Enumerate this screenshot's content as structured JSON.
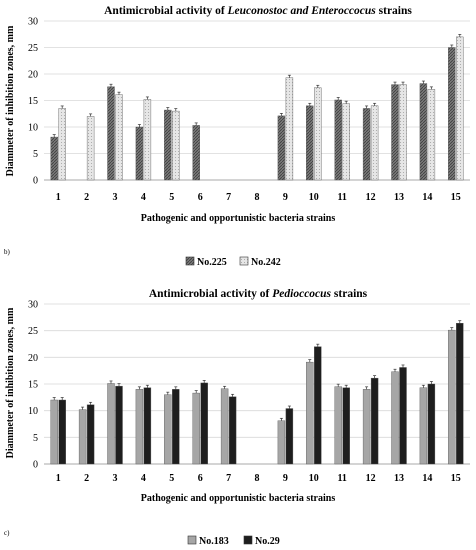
{
  "chart_data": [
    {
      "type": "bar",
      "panel": "b)",
      "title_parts": [
        "Antimicrobial activity of ",
        "Leuconostoc and Enteroccocus",
        " strains"
      ],
      "ylabel": "Diammeter of inhibition zones, mm",
      "xlabel": "Pathogenic and opportunistic bacteria strains",
      "ylim": [
        0,
        30
      ],
      "yticks": [
        "0",
        "5",
        "10",
        "15",
        "20",
        "25",
        "30"
      ],
      "grid": true,
      "legend_position": "bottom",
      "categories": [
        "1",
        "2",
        "3",
        "4",
        "5",
        "6",
        "7",
        "8",
        "9",
        "10",
        "11",
        "12",
        "13",
        "14",
        "15"
      ],
      "series": [
        {
          "name": "No.225",
          "values": [
            8.1,
            0,
            17.6,
            10.0,
            13.2,
            10.3,
            0,
            0,
            12.1,
            14.0,
            15.1,
            13.5,
            18.0,
            18.2,
            25.0
          ]
        },
        {
          "name": "No.242",
          "values": [
            13.5,
            12.0,
            16.1,
            15.2,
            13.0,
            0,
            0,
            0,
            19.3,
            17.4,
            14.4,
            14.0,
            18.0,
            17.1,
            27.0
          ]
        }
      ]
    },
    {
      "type": "bar",
      "panel": "c)",
      "title_parts": [
        "Antimicrobial activity of ",
        "Pedioccocus",
        " strains"
      ],
      "ylabel": "Diammeter of inhibition zones, mm",
      "xlabel": "Pathogenic and opportunistic bacteria strains",
      "ylim": [
        0,
        30
      ],
      "yticks": [
        "0",
        "5",
        "10",
        "15",
        "20",
        "25",
        "30"
      ],
      "grid": true,
      "legend_position": "bottom",
      "categories": [
        "1",
        "2",
        "3",
        "4",
        "5",
        "6",
        "7",
        "8",
        "9",
        "10",
        "11",
        "12",
        "13",
        "14",
        "15"
      ],
      "series": [
        {
          "name": "No.183",
          "values": [
            12.0,
            10.2,
            15.1,
            14.0,
            13.0,
            13.3,
            14.1,
            0,
            8.1,
            19.1,
            14.5,
            14.0,
            17.3,
            14.3,
            25.1
          ]
        },
        {
          "name": "No.29",
          "values": [
            12.0,
            11.1,
            14.6,
            14.3,
            14.0,
            15.2,
            12.6,
            0,
            10.4,
            22.0,
            14.3,
            16.1,
            18.1,
            15.0,
            26.4
          ]
        }
      ]
    }
  ],
  "colors": {
    "bar_225": "#6b6b6b",
    "bar_242": "#d9d9d9",
    "bar_183": "#a6a6a6",
    "bar_29": "#1e1e1e",
    "grid": "#d9d9d9"
  }
}
